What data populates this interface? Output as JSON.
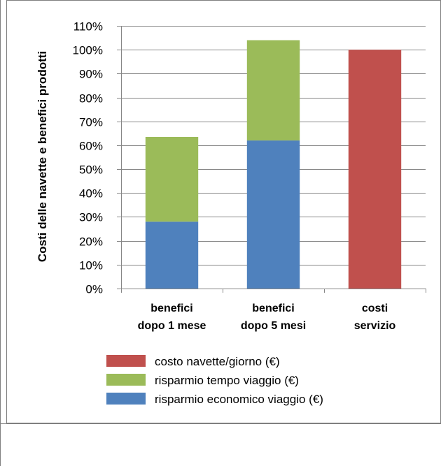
{
  "chart_data": {
    "type": "bar",
    "stacked": true,
    "title": "",
    "xlabel": "",
    "ylabel": "Costi delle navette e benefici prodotti",
    "ylim": [
      0,
      110
    ],
    "yticks": [
      "0%",
      "10%",
      "20%",
      "30%",
      "40%",
      "50%",
      "60%",
      "70%",
      "80%",
      "90%",
      "100%",
      "110%"
    ],
    "categories": [
      [
        "benefici",
        "dopo 1 mese"
      ],
      [
        "benefici",
        "dopo 5 mesi"
      ],
      [
        "costi",
        "servizio"
      ]
    ],
    "series": [
      {
        "name": "risparmio economico viaggio (€)",
        "color": "#4f81bd",
        "values": [
          28,
          62,
          0
        ]
      },
      {
        "name": "risparmio tempo viaggio (€)",
        "color": "#9bbb59",
        "values": [
          35.5,
          42,
          0
        ]
      },
      {
        "name": "costo navette/giorno (€)",
        "color": "#c0504d",
        "values": [
          0,
          0,
          100
        ]
      }
    ],
    "grid": true,
    "legend_position": "bottom",
    "legend_order": [
      2,
      1,
      0
    ]
  }
}
